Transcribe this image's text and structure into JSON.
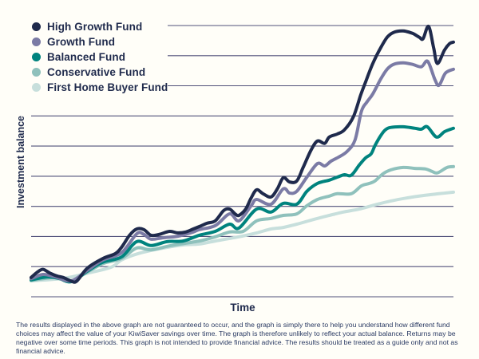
{
  "background_color": "#fffef8",
  "disclaimer": "The results displayed in the above graph are not guaranteed to occur, and the graph is simply there to help you understand how different fund choices may affect the value of your KiwiSaver savings over time. The graph is therefore unlikely to reflect your actual balance. Returns may be negative over some time periods. This graph is not intended to provide financial advice. The results should be treated as a guide only and not as financial advice.",
  "chart_data": {
    "type": "line",
    "title": "",
    "xlabel": "Time",
    "ylabel": "Investment balance",
    "xlim": [
      0,
      100
    ],
    "ylim": [
      0,
      9
    ],
    "x_tick_labels": [],
    "y_tick_labels": [],
    "legend_position": "top-left",
    "grid": {
      "horizontal_lines": 10,
      "shortened_top_lines": 3,
      "color": "#51517a"
    },
    "series": [
      {
        "name": "High Growth Fund",
        "color": "#1f2a4c",
        "points": [
          [
            0,
            0.64
          ],
          [
            1.5,
            0.82
          ],
          [
            2.8,
            0.91
          ],
          [
            4.4,
            0.79
          ],
          [
            6.1,
            0.69
          ],
          [
            7.6,
            0.64
          ],
          [
            9.5,
            0.52
          ],
          [
            10.8,
            0.52
          ],
          [
            13.3,
            0.95
          ],
          [
            17,
            1.27
          ],
          [
            19.9,
            1.43
          ],
          [
            21.4,
            1.64
          ],
          [
            23.3,
            2.04
          ],
          [
            25,
            2.25
          ],
          [
            26.7,
            2.23
          ],
          [
            28.4,
            2.04
          ],
          [
            30.3,
            2.07
          ],
          [
            32.8,
            2.17
          ],
          [
            34.7,
            2.12
          ],
          [
            36.6,
            2.15
          ],
          [
            38.4,
            2.25
          ],
          [
            39.8,
            2.33
          ],
          [
            41.7,
            2.44
          ],
          [
            43.6,
            2.52
          ],
          [
            45.6,
            2.86
          ],
          [
            47,
            2.91
          ],
          [
            48.3,
            2.75
          ],
          [
            49.2,
            2.7
          ],
          [
            50.8,
            2.91
          ],
          [
            52.1,
            3.28
          ],
          [
            53.4,
            3.55
          ],
          [
            54.9,
            3.42
          ],
          [
            56.8,
            3.31
          ],
          [
            58.3,
            3.58
          ],
          [
            59.7,
            3.95
          ],
          [
            61.2,
            3.81
          ],
          [
            62.9,
            3.84
          ],
          [
            64.4,
            4.29
          ],
          [
            66.3,
            4.87
          ],
          [
            67.8,
            5.17
          ],
          [
            69.5,
            5.09
          ],
          [
            70.6,
            5.3
          ],
          [
            72.5,
            5.4
          ],
          [
            74.2,
            5.54
          ],
          [
            76.3,
            5.97
          ],
          [
            78,
            6.68
          ],
          [
            79.2,
            7.13
          ],
          [
            80.9,
            7.74
          ],
          [
            82.8,
            8.27
          ],
          [
            84.3,
            8.61
          ],
          [
            85.8,
            8.77
          ],
          [
            88.1,
            8.82
          ],
          [
            90.3,
            8.74
          ],
          [
            91.9,
            8.61
          ],
          [
            92.8,
            8.56
          ],
          [
            94.1,
            8.97
          ],
          [
            95.3,
            8.27
          ],
          [
            96.2,
            7.74
          ],
          [
            97.9,
            8.19
          ],
          [
            99.1,
            8.4
          ],
          [
            100,
            8.45
          ]
        ]
      },
      {
        "name": "Growth Fund",
        "color": "#7b7ba5",
        "points": [
          [
            0,
            0.6
          ],
          [
            2.8,
            0.74
          ],
          [
            5.7,
            0.66
          ],
          [
            9.5,
            0.53
          ],
          [
            13.3,
            0.88
          ],
          [
            17,
            1.22
          ],
          [
            21.4,
            1.46
          ],
          [
            25,
            2.09
          ],
          [
            26.7,
            2.07
          ],
          [
            28.4,
            1.91
          ],
          [
            31.3,
            1.96
          ],
          [
            34.7,
            2.01
          ],
          [
            38.4,
            2.15
          ],
          [
            39.8,
            2.23
          ],
          [
            43.6,
            2.36
          ],
          [
            47,
            2.75
          ],
          [
            49.2,
            2.52
          ],
          [
            52.1,
            3.02
          ],
          [
            53.4,
            3.23
          ],
          [
            56.8,
            3.07
          ],
          [
            59.7,
            3.58
          ],
          [
            61.2,
            3.44
          ],
          [
            62.9,
            3.5
          ],
          [
            65.3,
            3.97
          ],
          [
            67.8,
            4.42
          ],
          [
            69.5,
            4.34
          ],
          [
            71,
            4.5
          ],
          [
            72.9,
            4.64
          ],
          [
            74.8,
            4.82
          ],
          [
            76.7,
            5.2
          ],
          [
            78.2,
            6.15
          ],
          [
            79.5,
            6.46
          ],
          [
            80.9,
            6.73
          ],
          [
            82.8,
            7.23
          ],
          [
            84.3,
            7.55
          ],
          [
            85.8,
            7.71
          ],
          [
            88.1,
            7.76
          ],
          [
            90.3,
            7.71
          ],
          [
            92.4,
            7.63
          ],
          [
            93.9,
            7.81
          ],
          [
            95.6,
            7.21
          ],
          [
            96.6,
            7.02
          ],
          [
            98.1,
            7.42
          ],
          [
            100,
            7.55
          ]
        ]
      },
      {
        "name": "Balanced Fund",
        "color": "#00837e",
        "points": [
          [
            0,
            0.56
          ],
          [
            3.8,
            0.66
          ],
          [
            6.6,
            0.61
          ],
          [
            9.5,
            0.5
          ],
          [
            13.3,
            0.85
          ],
          [
            17,
            1.15
          ],
          [
            21.4,
            1.32
          ],
          [
            25,
            1.83
          ],
          [
            28.4,
            1.7
          ],
          [
            32.2,
            1.83
          ],
          [
            36,
            1.85
          ],
          [
            39.8,
            2.04
          ],
          [
            43.6,
            2.17
          ],
          [
            47,
            2.41
          ],
          [
            49.2,
            2.28
          ],
          [
            53.4,
            2.91
          ],
          [
            56.8,
            2.81
          ],
          [
            59.7,
            3.1
          ],
          [
            62.9,
            3.07
          ],
          [
            65.3,
            3.5
          ],
          [
            67.8,
            3.76
          ],
          [
            70.6,
            3.87
          ],
          [
            72.5,
            3.97
          ],
          [
            74.2,
            4.05
          ],
          [
            75.8,
            4.03
          ],
          [
            77.7,
            4.37
          ],
          [
            79.2,
            4.61
          ],
          [
            80.5,
            4.74
          ],
          [
            81.4,
            5.01
          ],
          [
            82.8,
            5.35
          ],
          [
            83.9,
            5.54
          ],
          [
            85.2,
            5.62
          ],
          [
            88.1,
            5.64
          ],
          [
            90.9,
            5.59
          ],
          [
            92.4,
            5.56
          ],
          [
            93.8,
            5.64
          ],
          [
            96,
            5.3
          ],
          [
            97.9,
            5.48
          ],
          [
            100,
            5.59
          ]
        ]
      },
      {
        "name": "Conservative Fund",
        "color": "#8fc1bc",
        "points": [
          [
            0,
            0.54
          ],
          [
            5.7,
            0.64
          ],
          [
            9.5,
            0.53
          ],
          [
            13.3,
            0.82
          ],
          [
            17,
            1.1
          ],
          [
            21.4,
            1.27
          ],
          [
            25,
            1.62
          ],
          [
            28.4,
            1.56
          ],
          [
            33.1,
            1.7
          ],
          [
            39.8,
            1.85
          ],
          [
            43.6,
            1.99
          ],
          [
            47,
            2.15
          ],
          [
            50.2,
            2.17
          ],
          [
            53.4,
            2.52
          ],
          [
            56.8,
            2.6
          ],
          [
            59.7,
            2.7
          ],
          [
            62.9,
            2.75
          ],
          [
            65.3,
            3.02
          ],
          [
            67.8,
            3.23
          ],
          [
            70.6,
            3.34
          ],
          [
            72.5,
            3.42
          ],
          [
            75.8,
            3.42
          ],
          [
            78.2,
            3.68
          ],
          [
            80.1,
            3.76
          ],
          [
            81.4,
            3.84
          ],
          [
            83.3,
            4.08
          ],
          [
            85.2,
            4.21
          ],
          [
            88.1,
            4.29
          ],
          [
            90.9,
            4.26
          ],
          [
            93.4,
            4.24
          ],
          [
            94.9,
            4.16
          ],
          [
            96.2,
            4.11
          ],
          [
            98.5,
            4.29
          ],
          [
            100,
            4.32
          ]
        ]
      },
      {
        "name": "First Home Buyer Fund",
        "color": "#c7dfdc",
        "points": [
          [
            0,
            0.53
          ],
          [
            7.6,
            0.61
          ],
          [
            13.3,
            0.78
          ],
          [
            18.9,
            0.98
          ],
          [
            21.4,
            1.22
          ],
          [
            25,
            1.42
          ],
          [
            30.3,
            1.59
          ],
          [
            36,
            1.72
          ],
          [
            39.8,
            1.75
          ],
          [
            43.6,
            1.85
          ],
          [
            49.2,
            1.99
          ],
          [
            53.4,
            2.12
          ],
          [
            56.8,
            2.25
          ],
          [
            59.7,
            2.3
          ],
          [
            62.9,
            2.41
          ],
          [
            67.8,
            2.6
          ],
          [
            70.6,
            2.7
          ],
          [
            73.9,
            2.81
          ],
          [
            77.7,
            2.91
          ],
          [
            81.4,
            3.05
          ],
          [
            85.2,
            3.18
          ],
          [
            89,
            3.28
          ],
          [
            92.8,
            3.36
          ],
          [
            96.6,
            3.42
          ],
          [
            100,
            3.47
          ]
        ]
      }
    ]
  }
}
